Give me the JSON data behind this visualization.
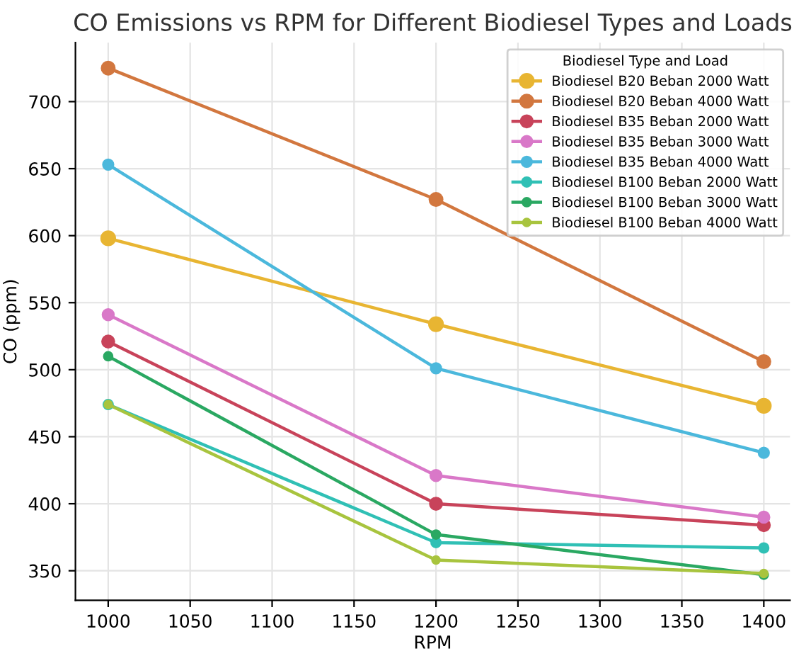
{
  "chart_data": {
    "type": "line",
    "title": "CO Emissions vs RPM for Different Biodiesel Types and Loads",
    "xlabel": "RPM",
    "ylabel": "CO (ppm)",
    "legend_title": "Biodiesel Type and Load",
    "x": [
      1000,
      1200,
      1400
    ],
    "series": [
      {
        "name": "Biodiesel B20 Beban 2000 Watt",
        "color": "#e8b532",
        "values": [
          598,
          534,
          473
        ]
      },
      {
        "name": "Biodiesel B20 Beban 4000 Watt",
        "color": "#d2773f",
        "values": [
          725,
          627,
          506
        ]
      },
      {
        "name": "Biodiesel B35 Beban 2000 Watt",
        "color": "#c8435a",
        "values": [
          521,
          400,
          384
        ]
      },
      {
        "name": "Biodiesel B35 Beban 3000 Watt",
        "color": "#d978c8",
        "values": [
          541,
          421,
          390
        ]
      },
      {
        "name": "Biodiesel B35 Beban 4000 Watt",
        "color": "#4bb8dc",
        "values": [
          653,
          501,
          438
        ]
      },
      {
        "name": "Biodiesel B100 Beban 2000 Watt",
        "color": "#30c0b5",
        "values": [
          474,
          371,
          367
        ]
      },
      {
        "name": "Biodiesel B100 Beban 3000 Watt",
        "color": "#2aa862",
        "values": [
          510,
          377,
          347
        ]
      },
      {
        "name": "Biodiesel B100 Beban 4000 Watt",
        "color": "#a8c43e",
        "values": [
          474,
          358,
          348
        ]
      }
    ],
    "xlim": [
      980,
      1416
    ],
    "ylim": [
      328,
      744
    ],
    "xticks": [
      1000,
      1050,
      1100,
      1150,
      1200,
      1250,
      1300,
      1350,
      1400
    ],
    "yticks": [
      350,
      400,
      450,
      500,
      550,
      600,
      650,
      700
    ],
    "grid": true,
    "legend": "top right",
    "marker": "circle",
    "line_style": "solid"
  }
}
